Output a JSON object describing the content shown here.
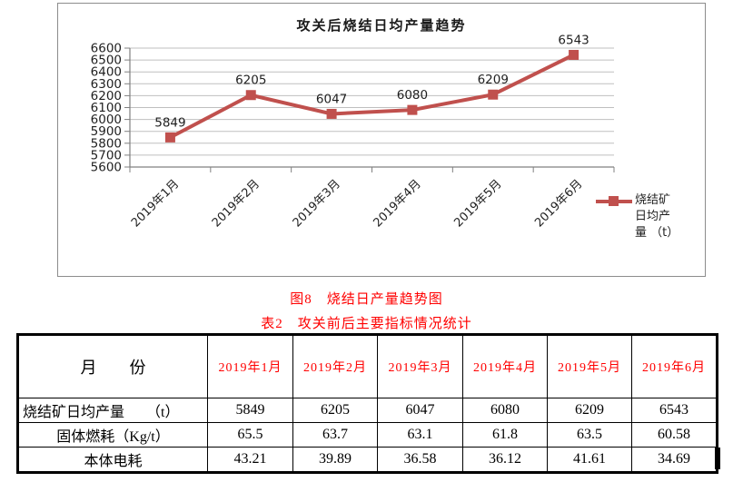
{
  "chart_data": {
    "type": "line",
    "title": "攻关后烧结日均产量趋势",
    "categories": [
      "2019年1月",
      "2019年2月",
      "2019年3月",
      "2019年4月",
      "2019年5月",
      "2019年6月"
    ],
    "series": [
      {
        "name": "烧结矿日均产量 （t）",
        "values": [
          5849,
          6205,
          6047,
          6080,
          6209,
          6543
        ]
      }
    ],
    "xlabel": "",
    "ylabel": "",
    "ylim": [
      5600,
      6600
    ],
    "ytick_step": 100,
    "grid": true,
    "data_labels": true,
    "legend_position": "right",
    "line_color": "#c0504d",
    "marker": "square"
  },
  "captions": {
    "figure": "图8　烧结日产量趋势图",
    "table": "表2　攻关前后主要指标情况统计"
  },
  "table": {
    "header": [
      "月　　份",
      "2019年1月",
      "2019年2月",
      "2019年3月",
      "2019年4月",
      "2019年5月",
      "2019年6月"
    ],
    "rows": [
      {
        "label": "烧结矿日均产量　　（t）",
        "values": [
          "5849",
          "6205",
          "6047",
          "6080",
          "6209",
          "6543"
        ]
      },
      {
        "label": "固体燃耗（Kg/t）",
        "values": [
          "65.5",
          "63.7",
          "63.1",
          "61.8",
          "63.5",
          "60.58"
        ]
      },
      {
        "label": "本体电耗",
        "values": [
          "43.21",
          "39.89",
          "36.58",
          "36.12",
          "41.61",
          "34.69"
        ]
      }
    ]
  },
  "colors": {
    "caption_red": "#ff0000",
    "series_red": "#c0504d",
    "gridline_gray": "#bfbfbf",
    "axis_gray": "#808080"
  }
}
